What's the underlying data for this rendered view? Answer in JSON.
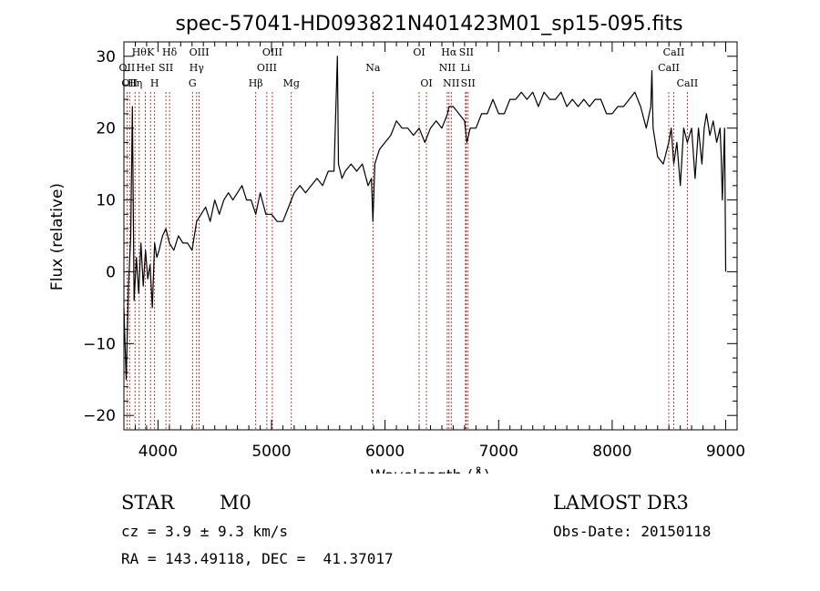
{
  "chart_data": {
    "type": "line",
    "title": "spec-57041-HD093821N401423M01_sp15-095.fits",
    "xlabel": "Wavelength (Å)",
    "ylabel": "Flux (relative)",
    "xlim": [
      3700,
      9100
    ],
    "ylim": [
      -22,
      32
    ],
    "xticks": [
      4000,
      5000,
      6000,
      7000,
      8000,
      9000
    ],
    "yticks": [
      -20,
      -10,
      0,
      10,
      20,
      30
    ],
    "series": [
      {
        "name": "flux",
        "x": [
          3700,
          3720,
          3740,
          3760,
          3775,
          3790,
          3810,
          3830,
          3850,
          3870,
          3890,
          3910,
          3930,
          3950,
          3970,
          3990,
          4010,
          4040,
          4070,
          4100,
          4140,
          4180,
          4220,
          4260,
          4300,
          4340,
          4380,
          4420,
          4460,
          4500,
          4540,
          4580,
          4620,
          4660,
          4700,
          4740,
          4780,
          4820,
          4861,
          4900,
          4950,
          5000,
          5050,
          5100,
          5150,
          5200,
          5250,
          5300,
          5350,
          5400,
          5450,
          5500,
          5550,
          5580,
          5590,
          5620,
          5650,
          5700,
          5750,
          5800,
          5850,
          5880,
          5893,
          5910,
          5950,
          6000,
          6050,
          6100,
          6150,
          6200,
          6250,
          6300,
          6350,
          6400,
          6450,
          6500,
          6550,
          6563,
          6600,
          6650,
          6700,
          6720,
          6750,
          6800,
          6850,
          6900,
          6950,
          7000,
          7050,
          7100,
          7150,
          7200,
          7250,
          7300,
          7350,
          7400,
          7450,
          7500,
          7550,
          7600,
          7650,
          7700,
          7750,
          7800,
          7850,
          7900,
          7950,
          8000,
          8050,
          8100,
          8150,
          8200,
          8250,
          8300,
          8340,
          8350,
          8360,
          8400,
          8450,
          8498,
          8520,
          8542,
          8570,
          8600,
          8630,
          8662,
          8700,
          8730,
          8760,
          8790,
          8810,
          8830,
          8860,
          8890,
          8920,
          8950,
          8960,
          8970,
          8990,
          9000
        ],
        "values": [
          -5,
          -15,
          -2,
          5,
          23,
          -4,
          2,
          -3,
          4,
          -2,
          3,
          -1,
          1,
          -5,
          4,
          2,
          3,
          5,
          6,
          4,
          3,
          5,
          4,
          4,
          3,
          7,
          8,
          9,
          7,
          10,
          8,
          10,
          11,
          10,
          11,
          12,
          10,
          10,
          8,
          11,
          8,
          8,
          7,
          7,
          9,
          11,
          12,
          11,
          12,
          13,
          12,
          14,
          14,
          30,
          15,
          13,
          14,
          15,
          14,
          15,
          12,
          13,
          7,
          15,
          17,
          18,
          19,
          21,
          20,
          20,
          19,
          20,
          18,
          20,
          21,
          20,
          22,
          23,
          23,
          22,
          21,
          18,
          20,
          20,
          22,
          22,
          24,
          22,
          22,
          24,
          24,
          25,
          24,
          25,
          23,
          25,
          24,
          24,
          25,
          23,
          24,
          23,
          24,
          23,
          24,
          24,
          22,
          22,
          23,
          23,
          24,
          25,
          23,
          20,
          23,
          28,
          20,
          16,
          15,
          18,
          20,
          15,
          18,
          12,
          20,
          18,
          20,
          13,
          20,
          15,
          20,
          22,
          19,
          21,
          18,
          20,
          16,
          10,
          20,
          0
        ]
      }
    ],
    "lines": [
      {
        "wl": 3727,
        "label": "OII",
        "row": 1
      },
      {
        "wl": 3750,
        "label": "OII",
        "row": 2
      },
      {
        "wl": 3798,
        "label": "Hη",
        "row": 2
      },
      {
        "wl": 3835,
        "label": "Hθ",
        "row": 0
      },
      {
        "wl": 3889,
        "label": "HeI",
        "row": 1
      },
      {
        "wl": 3934,
        "label": "K",
        "row": 0
      },
      {
        "wl": 3970,
        "label": "H",
        "row": 2
      },
      {
        "wl": 4070,
        "label": "SII",
        "row": 1
      },
      {
        "wl": 4102,
        "label": "Hδ",
        "row": 0
      },
      {
        "wl": 4304,
        "label": "G",
        "row": 2
      },
      {
        "wl": 4340,
        "label": "Hγ",
        "row": 1
      },
      {
        "wl": 4363,
        "label": "OIII",
        "row": 0
      },
      {
        "wl": 4861,
        "label": "Hβ",
        "row": 2
      },
      {
        "wl": 4959,
        "label": "OIII",
        "row": 1
      },
      {
        "wl": 5007,
        "label": "OIII",
        "row": 0
      },
      {
        "wl": 5175,
        "label": "Mg",
        "row": 2
      },
      {
        "wl": 5893,
        "label": "Na",
        "row": 1
      },
      {
        "wl": 6300,
        "label": "OI",
        "row": 0
      },
      {
        "wl": 6364,
        "label": "OI",
        "row": 2
      },
      {
        "wl": 6548,
        "label": "NII",
        "row": 1
      },
      {
        "wl": 6563,
        "label": "Hα",
        "row": 0
      },
      {
        "wl": 6583,
        "label": "NII",
        "row": 2
      },
      {
        "wl": 6708,
        "label": "Li",
        "row": 1
      },
      {
        "wl": 6716,
        "label": "SII",
        "row": 0
      },
      {
        "wl": 6731,
        "label": "SII",
        "row": 2
      },
      {
        "wl": 8498,
        "label": "CaII",
        "row": 1
      },
      {
        "wl": 8542,
        "label": "CaII",
        "row": 0
      },
      {
        "wl": 8662,
        "label": "CaII",
        "row": 2
      }
    ]
  },
  "info": {
    "class": "STAR",
    "subclass": "M0",
    "survey": "LAMOST DR3",
    "cz": "cz = 3.9 ± 9.3 km/s",
    "obs_date": "Obs-Date: 20150118",
    "radec": "RA = 143.49118, DEC =  41.37017"
  },
  "colors": {
    "spectrum": "#000000",
    "line_marker": "#cc0000",
    "axis": "#000000",
    "background": "#ffffff"
  }
}
